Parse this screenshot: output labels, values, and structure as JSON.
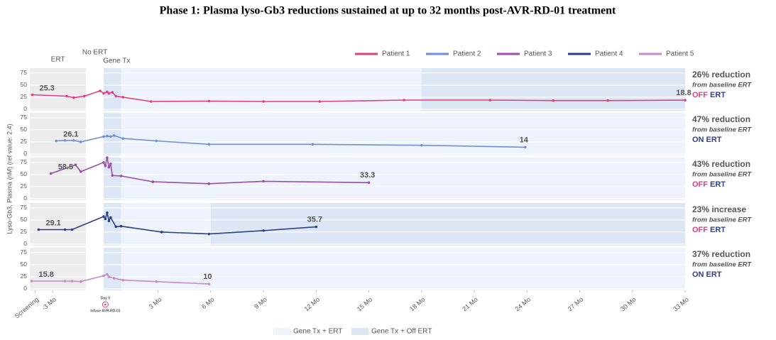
{
  "chart_data": {
    "type": "line",
    "title": "Phase 1: Plasma lyso-Gb3 reductions sustained at up to 32 months post-AVR-RD-01 treatment",
    "y_label": "Lyso-Gb3, Plasma (nM) (ref value: 2.4)",
    "xlim": [
      -4.3,
      33
    ],
    "xticks": [
      {
        "value": -4,
        "label": "Screening"
      },
      {
        "value": -3,
        "label": "-3 Mo"
      },
      {
        "value": 3,
        "label": "3 Mo"
      },
      {
        "value": 6,
        "label": "6 Mo"
      },
      {
        "value": 9,
        "label": "9 Mo"
      },
      {
        "value": 12,
        "label": "12 Mo"
      },
      {
        "value": 15,
        "label": "15 Mo"
      },
      {
        "value": 18,
        "label": "18 Mo"
      },
      {
        "value": 21,
        "label": "21 Mo"
      },
      {
        "value": 24,
        "label": "24 Mo"
      },
      {
        "value": 27,
        "label": "27 Mo"
      },
      {
        "value": 30,
        "label": "30 Mo"
      },
      {
        "value": 33,
        "label": "33 Mo"
      }
    ],
    "ylim": [
      -3,
      85
    ],
    "yticks": [
      0,
      25,
      50,
      75
    ],
    "day0_label": "Day 0",
    "infusion_label": "Infuse AVR-RD-01",
    "infusion_x": 0,
    "phases": [
      {
        "label": "ERT",
        "from": -4.3,
        "to": -1.1
      },
      {
        "label": "No ERT",
        "from": -1.1,
        "to": -0.1
      },
      {
        "label": "Gene Tx",
        "from": -0.1,
        "to": 0.9
      }
    ],
    "region_legend": [
      {
        "label": "Gene Tx + ERT",
        "color": "#eef3fb"
      },
      {
        "label": "Gene Tx + Off ERT",
        "color": "#dde6f5"
      }
    ],
    "series": [
      {
        "name": "Patient 1",
        "color": "#e0407f",
        "baseline": 25.3,
        "off_ert_from": 18,
        "change": "26% reduction",
        "from_text": "from baseline ERT",
        "status": "OFF",
        "status_suffix": "ERT",
        "x": [
          -4.16,
          -2.2,
          -1.8,
          -1.2,
          -0.3,
          -0.1,
          0.1,
          0.2,
          0.4,
          0.6,
          1,
          2.6,
          5.9,
          9,
          12.2,
          17,
          21.9,
          25.5,
          28.6,
          33
        ],
        "values": [
          30,
          27,
          24,
          27,
          38,
          33,
          36,
          33,
          35,
          27,
          25,
          16,
          17,
          16,
          16,
          19,
          19,
          18,
          18,
          18.8
        ]
      },
      {
        "name": "Patient 2",
        "color": "#6f8fd8",
        "baseline": 26.1,
        "off_ert_from": null,
        "change": "47% reduction",
        "from_text": "from baseline ERT",
        "status": "ON",
        "status_suffix": "ERT",
        "x": [
          -2.8,
          -2.3,
          -1.8,
          -1.4,
          -0.1,
          0.1,
          0.3,
          0.5,
          1,
          2.9,
          5.9,
          11.8,
          18,
          23.9
        ],
        "values": [
          27,
          28,
          28,
          25,
          36,
          37,
          36,
          38,
          32,
          27,
          20,
          20,
          18,
          14.0
        ]
      },
      {
        "name": "Patient 3",
        "color": "#9b4fa8",
        "baseline": 58.5,
        "off_ert_from": null,
        "change": "43% reduction",
        "from_text": "from baseline ERT",
        "status": "OFF",
        "status_suffix": "ERT",
        "x": [
          -3.1,
          -1.7,
          -1.4,
          -0.1,
          0,
          0.1,
          0.2,
          0.3,
          0.4,
          0.9,
          2.7,
          5.9,
          9,
          15
        ],
        "values": [
          52,
          70,
          56,
          75,
          68,
          85,
          65,
          72,
          48,
          47,
          35,
          31,
          36,
          33.3
        ]
      },
      {
        "name": "Patient 4",
        "color": "#2d3f8a",
        "baseline": 29.1,
        "off_ert_from": 6,
        "change": "23% increase",
        "from_text": "from baseline ERT",
        "status": "OFF",
        "status_suffix": "ERT",
        "x": [
          -3.8,
          -2.3,
          -1.9,
          -0.1,
          0,
          0.1,
          0.2,
          0.3,
          0.6,
          0.9,
          3.2,
          5.9,
          9,
          12
        ],
        "values": [
          30,
          30,
          30,
          57,
          52,
          65,
          48,
          55,
          36,
          37,
          25,
          21,
          28,
          35.7
        ]
      },
      {
        "name": "Patient 5",
        "color": "#c98ac9",
        "baseline": 15.8,
        "off_ert_from": null,
        "change": "37% reduction",
        "from_text": "from baseline ERT",
        "status": "ON",
        "status_suffix": "ERT",
        "x": [
          -4.2,
          -2.3,
          -1.9,
          -1.4,
          -0.1,
          0.1,
          0.2,
          0.5,
          1,
          2.9,
          5.9
        ],
        "values": [
          16,
          16,
          16,
          15,
          27,
          30,
          25,
          22,
          18,
          15,
          10.0
        ]
      }
    ]
  }
}
